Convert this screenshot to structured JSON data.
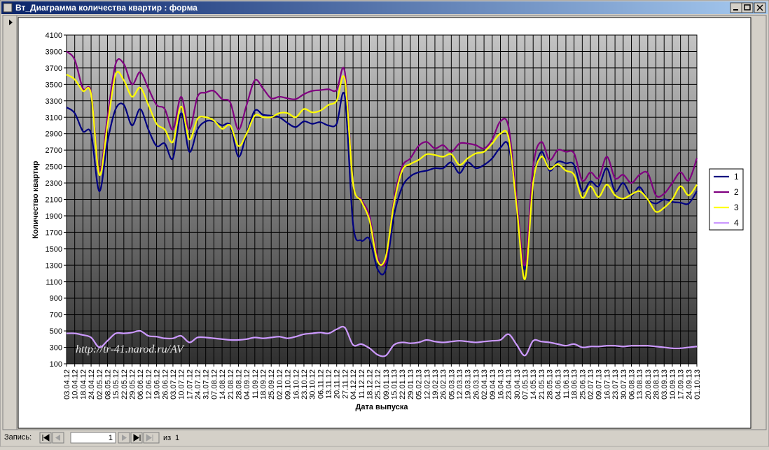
{
  "window": {
    "title": "Вт_Диаграмма количества квартир : форма"
  },
  "chart_data": {
    "type": "line",
    "y_label": "Количество квартир",
    "x_label": "Дата выпуска",
    "annotation": "http://tr-41.narod.ru/AV",
    "categories": [
      "03.04.12",
      "10.04.12",
      "18.04.12",
      "24.04.12",
      "02.05.12",
      "08.05.12",
      "15.05.12",
      "22.05.12",
      "29.05.12",
      "06.06.12",
      "12.06.12",
      "19.06.12",
      "26.06.12",
      "03.07.12",
      "10.07.12",
      "17.07.12",
      "24.07.12",
      "31.07.12",
      "07.08.12",
      "14.08.12",
      "21.08.12",
      "28.08.12",
      "04.09.12",
      "11.09.12",
      "18.09.12",
      "25.09.12",
      "02.10.12",
      "09.10.12",
      "16.10.12",
      "23.10.12",
      "30.10.12",
      "06.11.12",
      "13.11.12",
      "20.11.12",
      "27.11.12",
      "04.12.12",
      "11.12.12",
      "18.12.12",
      "25.12.12",
      "09.01.13",
      "15.01.13",
      "22.01.13",
      "29.01.13",
      "05.02.13",
      "12.02.13",
      "19.02.13",
      "26.02.13",
      "05.03.13",
      "12.03.13",
      "19.03.13",
      "26.03.13",
      "02.04.13",
      "09.04.13",
      "16.04.13",
      "23.04.13",
      "30.04.13",
      "07.05.13",
      "14.05.13",
      "21.05.13",
      "28.05.13",
      "04.06.13",
      "11.06.13",
      "18.06.13",
      "25.06.13",
      "02.07.13",
      "09.07.13",
      "16.07.13",
      "23.07.13",
      "30.07.13",
      "06.08.13",
      "13.08.13",
      "20.08.13",
      "28.08.13",
      "03.09.13",
      "10.09.13",
      "17.09.13",
      "24.09.13",
      "01.10.13"
    ],
    "series": [
      {
        "name": "1",
        "color": "#000080",
        "values": [
          3220,
          3150,
          2930,
          2900,
          2200,
          2800,
          3200,
          3250,
          3000,
          3200,
          2950,
          2750,
          2780,
          2600,
          3150,
          2680,
          2950,
          3050,
          3050,
          3000,
          3000,
          2620,
          2900,
          3180,
          3130,
          3120,
          3100,
          3030,
          2980,
          3050,
          3020,
          3040,
          3000,
          3020,
          3350,
          1800,
          1600,
          1620,
          1250,
          1250,
          1900,
          2250,
          2380,
          2430,
          2450,
          2480,
          2480,
          2550,
          2420,
          2550,
          2480,
          2520,
          2600,
          2730,
          2750,
          2050,
          1250,
          2300,
          2680,
          2450,
          2560,
          2540,
          2520,
          2200,
          2320,
          2260,
          2480,
          2200,
          2300,
          2150,
          2250,
          2100,
          2050,
          2100,
          2070,
          2060,
          2050,
          2200
        ]
      },
      {
        "name": "2",
        "color": "#800080",
        "values": [
          3900,
          3800,
          3450,
          3400,
          2450,
          3100,
          3750,
          3750,
          3500,
          3650,
          3450,
          3250,
          3200,
          2950,
          3350,
          2950,
          3350,
          3400,
          3420,
          3320,
          3280,
          2950,
          3250,
          3550,
          3450,
          3330,
          3350,
          3330,
          3320,
          3380,
          3420,
          3430,
          3440,
          3430,
          3650,
          2300,
          2100,
          1900,
          1400,
          1350,
          2100,
          2500,
          2600,
          2750,
          2800,
          2720,
          2760,
          2680,
          2780,
          2780,
          2760,
          2720,
          2830,
          3050,
          2980,
          2100,
          1300,
          2500,
          2800,
          2580,
          2700,
          2680,
          2660,
          2330,
          2430,
          2360,
          2620,
          2360,
          2400,
          2300,
          2400,
          2420,
          2150,
          2170,
          2300,
          2430,
          2330,
          2600
        ]
      },
      {
        "name": "3",
        "color": "#ffff00",
        "values": [
          3620,
          3560,
          3420,
          3380,
          2400,
          3000,
          3620,
          3550,
          3350,
          3460,
          3250,
          3020,
          2950,
          2800,
          3230,
          2830,
          3080,
          3100,
          3060,
          2960,
          3000,
          2750,
          2900,
          3120,
          3100,
          3100,
          3150,
          3150,
          3100,
          3200,
          3160,
          3180,
          3250,
          3300,
          3560,
          2300,
          2080,
          1850,
          1350,
          1400,
          2050,
          2450,
          2530,
          2580,
          2650,
          2640,
          2620,
          2650,
          2520,
          2600,
          2660,
          2680,
          2780,
          2900,
          2850,
          2000,
          1130,
          2300,
          2620,
          2470,
          2530,
          2450,
          2400,
          2120,
          2260,
          2130,
          2280,
          2150,
          2110,
          2160,
          2200,
          2100,
          1950,
          2000,
          2100,
          2260,
          2150,
          2280
        ]
      },
      {
        "name": "4",
        "color": "#cc99ff",
        "values": [
          470,
          470,
          450,
          420,
          300,
          380,
          470,
          470,
          480,
          500,
          440,
          430,
          410,
          410,
          440,
          360,
          420,
          420,
          410,
          400,
          390,
          390,
          400,
          420,
          410,
          420,
          430,
          410,
          430,
          460,
          470,
          480,
          470,
          520,
          540,
          330,
          340,
          290,
          210,
          200,
          330,
          360,
          350,
          360,
          390,
          370,
          360,
          370,
          380,
          370,
          360,
          370,
          380,
          390,
          460,
          330,
          200,
          380,
          370,
          360,
          340,
          320,
          340,
          300,
          310,
          310,
          320,
          320,
          310,
          320,
          320,
          320,
          310,
          300,
          290,
          290,
          300,
          310
        ]
      }
    ],
    "ylim": [
      100,
      4100
    ],
    "yticks": [
      100,
      300,
      500,
      700,
      900,
      1100,
      1300,
      1500,
      1700,
      1900,
      2100,
      2300,
      2500,
      2700,
      2900,
      3100,
      3300,
      3500,
      3700,
      3900,
      4100
    ],
    "grid": true,
    "legend": "right"
  },
  "navigation": {
    "label": "Запись:",
    "current": "1",
    "of_label": "из",
    "total": "1"
  }
}
